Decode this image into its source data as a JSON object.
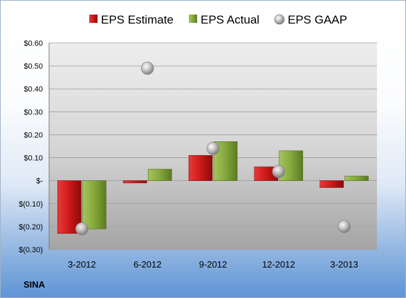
{
  "company": "SINA",
  "chart_data": {
    "type": "bar",
    "categories": [
      "3-2012",
      "6-2012",
      "9-2012",
      "12-2012",
      "3-2013"
    ],
    "series": [
      {
        "name": "EPS Estimate",
        "kind": "bar",
        "color": "#cc2222",
        "values": [
          -0.23,
          -0.01,
          0.11,
          0.06,
          -0.03
        ]
      },
      {
        "name": "EPS Actual",
        "kind": "bar",
        "color": "#8cb040",
        "values": [
          -0.21,
          0.05,
          0.17,
          0.13,
          0.02
        ]
      },
      {
        "name": "EPS GAAP",
        "kind": "marker",
        "color": "#b8b8b8",
        "values": [
          -0.21,
          0.49,
          0.14,
          0.04,
          -0.2
        ]
      }
    ],
    "yticks": [
      0.6,
      0.5,
      0.4,
      0.3,
      0.2,
      0.1,
      0,
      -0.1,
      -0.2,
      -0.3
    ],
    "ytick_labels": [
      "$0.60",
      "$0.50",
      "$0.40",
      "$0.30",
      "$0.20",
      "$0.10",
      "$-",
      "$(0.10)",
      "$(0.20)",
      "$(0.30)"
    ],
    "ylim": [
      -0.3,
      0.6
    ],
    "grid": true,
    "legend_position": "top"
  }
}
